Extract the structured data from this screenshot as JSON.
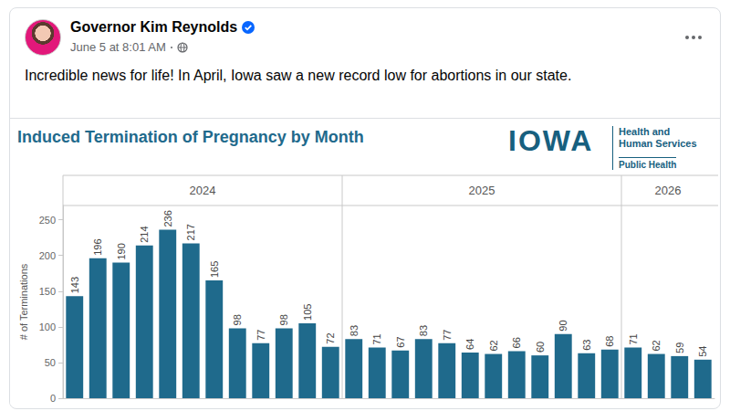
{
  "post": {
    "author": "Governor Kim Reynolds",
    "time": "June 5 at 8:01 AM",
    "text": "Incredible news for life! In April, Iowa saw a new record low for abortions in our state."
  },
  "chart_logo": {
    "name": "IOWA",
    "org": "Health and Human Services",
    "division": "Public Health"
  },
  "chart_data": {
    "type": "bar",
    "title": "Induced Termination of Pregnancy by Month",
    "ylabel": "# of Terminations",
    "groups": [
      {
        "label": "2024",
        "size": 12
      },
      {
        "label": "2025",
        "size": 12
      },
      {
        "label": "2026",
        "size": 4
      }
    ],
    "categories": [
      null,
      null,
      null,
      null,
      null,
      null,
      null,
      null,
      null,
      null,
      null,
      null,
      null,
      null,
      null,
      null,
      null,
      null,
      null,
      null,
      null,
      null,
      null,
      null,
      null,
      null,
      null,
      null
    ],
    "values": [
      143,
      196,
      190,
      214,
      236,
      217,
      165,
      98,
      77,
      98,
      105,
      72,
      83,
      71,
      67,
      83,
      77,
      64,
      62,
      66,
      60,
      90,
      63,
      68,
      71,
      62,
      59,
      54
    ],
    "color": "#1f6a8c",
    "ylim": [
      0,
      270
    ],
    "yticks": [
      0,
      50,
      100,
      150,
      200,
      250
    ],
    "grid": false,
    "data_labels": true
  }
}
